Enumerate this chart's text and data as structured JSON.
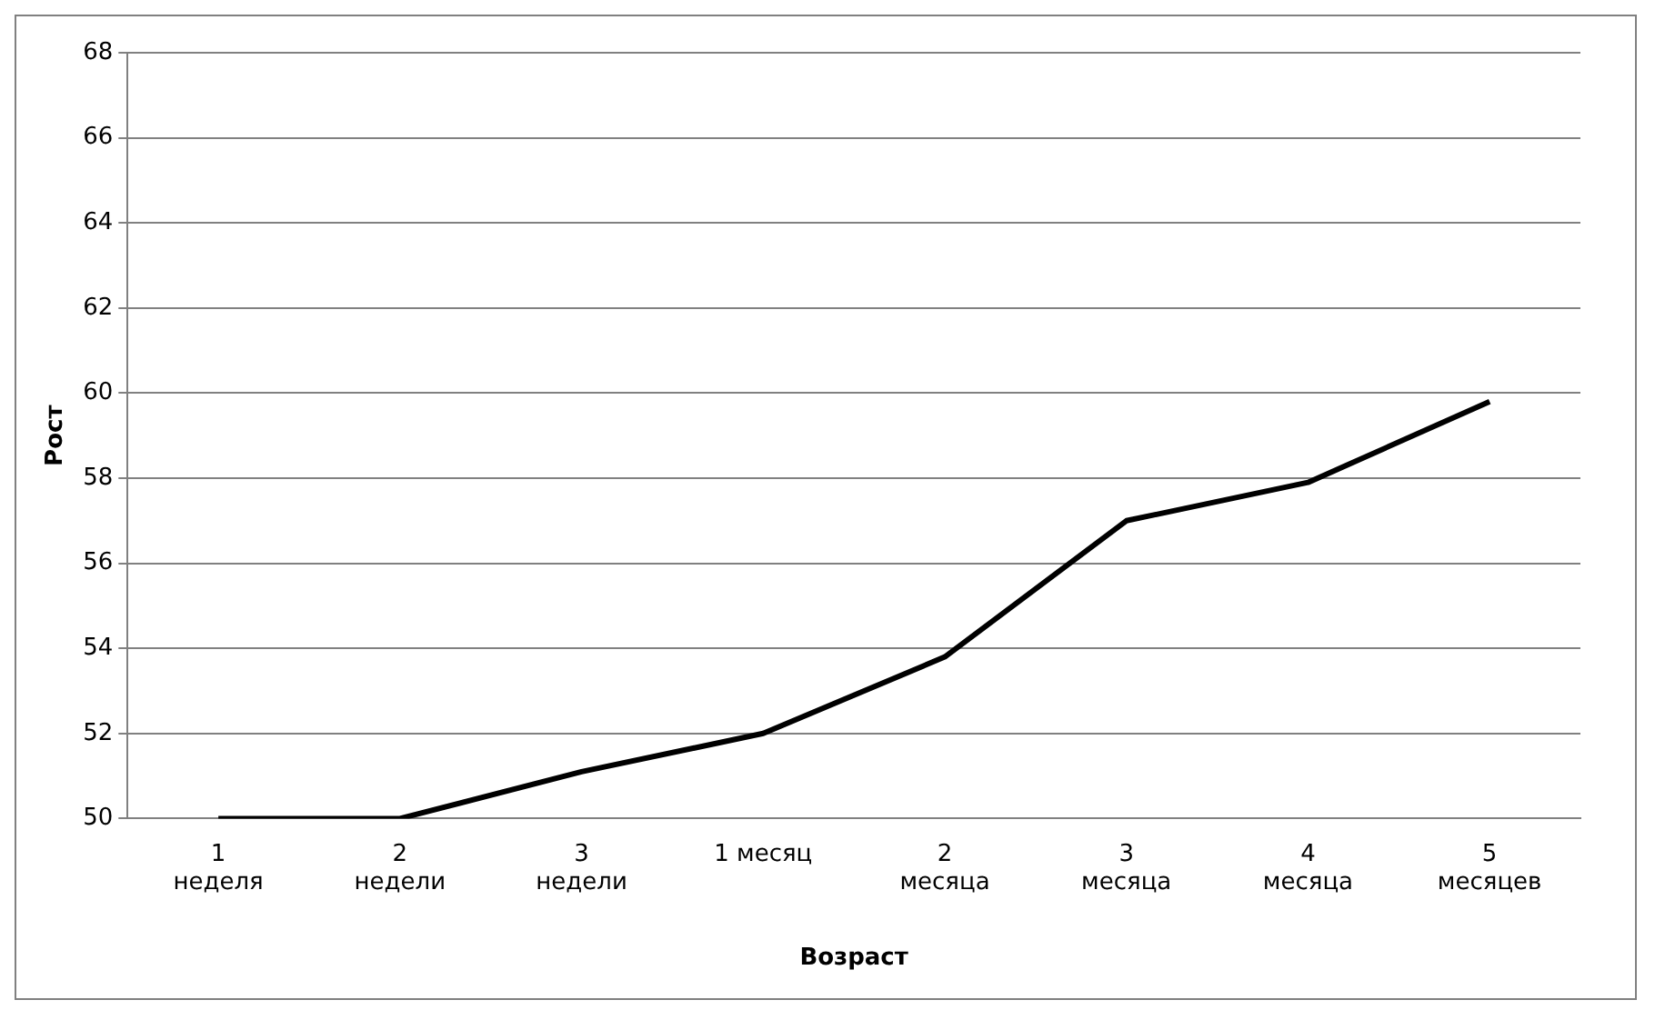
{
  "chart_data": {
    "type": "line",
    "xlabel": "Возраст",
    "ylabel": "Рост",
    "categories": [
      "1\nнеделя",
      "2\nнедели",
      "3\nнедели",
      "1 месяц",
      "2\nмесяца",
      "3\nмесяца",
      "4\nмесяца",
      "5\nмесяцев"
    ],
    "series": [
      {
        "color": "#000000",
        "values": [
          50,
          50,
          51.1,
          52,
          53.8,
          57,
          57.9,
          59.8
        ]
      }
    ],
    "ylim": [
      50,
      68
    ],
    "yticks": [
      50,
      52,
      54,
      56,
      58,
      60,
      62,
      64,
      66,
      68
    ],
    "grid": "y",
    "legend": false,
    "marker": "none",
    "line_style": "solid"
  }
}
